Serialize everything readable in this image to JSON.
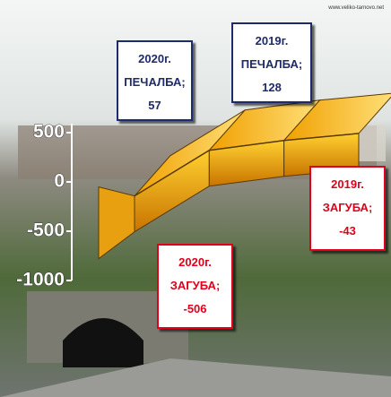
{
  "watermark": "www.veliko-tarnovo.net",
  "chart_data": {
    "type": "ribbon",
    "values": [
      -506,
      -43,
      57,
      128
    ],
    "value_labels": [
      "2020г. ЗАГУБА; -506",
      "2019г. ЗАГУБА; -43",
      "2020г. ПЕЧАЛБА; 57",
      "2019г. ПЕЧАЛБА; 128"
    ],
    "ylim": [
      -1000,
      500
    ],
    "yticks": [
      -1000,
      -500,
      0,
      500
    ]
  }
}
